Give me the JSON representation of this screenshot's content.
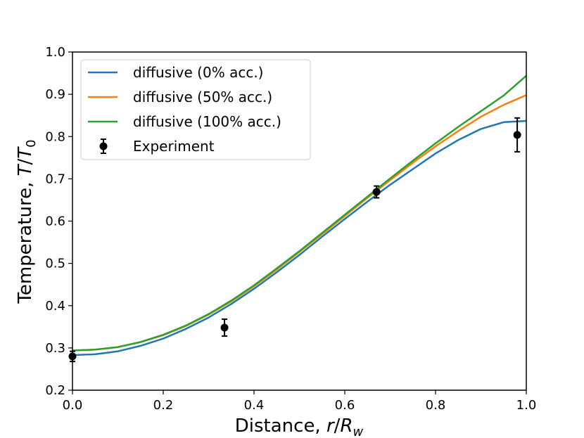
{
  "chart_data": {
    "type": "line",
    "xlabel": "Distance, r/R_w",
    "ylabel": "Temperature, T/T_0",
    "xlim": [
      0.0,
      1.0
    ],
    "ylim": [
      0.2,
      1.0
    ],
    "xticks": [
      "0.0",
      "0.2",
      "0.4",
      "0.6",
      "0.8",
      "1.0"
    ],
    "yticks": [
      "0.2",
      "0.3",
      "0.4",
      "0.5",
      "0.6",
      "0.7",
      "0.8",
      "0.9",
      "1.0"
    ],
    "legend_position": "upper-left",
    "series": [
      {
        "name": "diffusive (0% acc.)",
        "color": "#1f77b4",
        "kind": "line",
        "x": [
          0.0,
          0.05,
          0.1,
          0.15,
          0.2,
          0.25,
          0.3,
          0.35,
          0.4,
          0.45,
          0.5,
          0.55,
          0.6,
          0.65,
          0.7,
          0.75,
          0.8,
          0.85,
          0.9,
          0.95,
          1.0
        ],
        "y": [
          0.283,
          0.285,
          0.292,
          0.305,
          0.322,
          0.345,
          0.372,
          0.404,
          0.44,
          0.479,
          0.52,
          0.563,
          0.605,
          0.646,
          0.686,
          0.723,
          0.76,
          0.792,
          0.818,
          0.834,
          0.837
        ]
      },
      {
        "name": "diffusive (50% acc.)",
        "color": "#ff7f0e",
        "kind": "line",
        "x": [
          0.0,
          0.05,
          0.1,
          0.15,
          0.2,
          0.25,
          0.3,
          0.35,
          0.4,
          0.45,
          0.5,
          0.55,
          0.6,
          0.65,
          0.7,
          0.75,
          0.8,
          0.85,
          0.9,
          0.95,
          1.0
        ],
        "y": [
          0.294,
          0.296,
          0.302,
          0.314,
          0.33,
          0.352,
          0.379,
          0.41,
          0.446,
          0.485,
          0.527,
          0.569,
          0.612,
          0.655,
          0.697,
          0.738,
          0.777,
          0.813,
          0.847,
          0.875,
          0.898
        ]
      },
      {
        "name": "diffusive (100% acc.)",
        "color": "#2ca02c",
        "kind": "line",
        "x": [
          0.0,
          0.05,
          0.1,
          0.15,
          0.2,
          0.25,
          0.3,
          0.35,
          0.4,
          0.45,
          0.5,
          0.55,
          0.6,
          0.65,
          0.7,
          0.75,
          0.8,
          0.85,
          0.9,
          0.95,
          1.0
        ],
        "y": [
          0.294,
          0.296,
          0.302,
          0.314,
          0.331,
          0.353,
          0.38,
          0.412,
          0.448,
          0.488,
          0.529,
          0.572,
          0.615,
          0.658,
          0.701,
          0.743,
          0.784,
          0.823,
          0.86,
          0.897,
          0.944
        ]
      },
      {
        "name": "Experiment",
        "color": "#000000",
        "kind": "errorbar",
        "x": [
          0.0,
          0.335,
          0.67,
          0.98
        ],
        "y": [
          0.28,
          0.348,
          0.669,
          0.804
        ],
        "yerr": [
          0.012,
          0.02,
          0.014,
          0.04
        ]
      }
    ]
  }
}
